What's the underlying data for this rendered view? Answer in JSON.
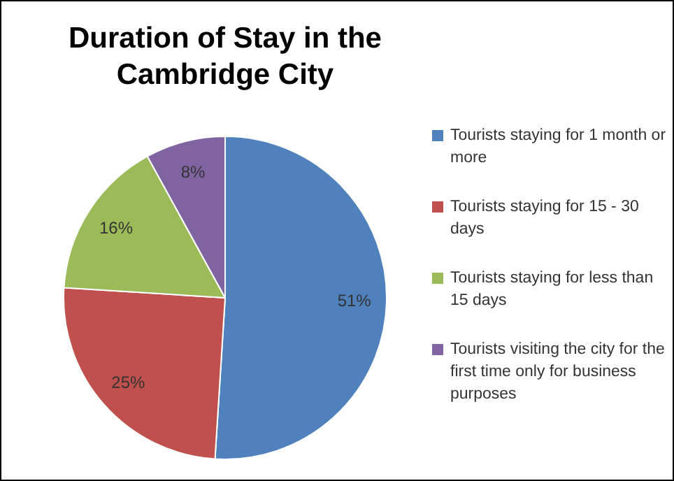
{
  "chart_data": {
    "type": "pie",
    "title": "Duration of Stay in the Cambridge City",
    "categories": [
      "Tourists staying for 1 month or more",
      "Tourists staying for 15 - 30 days",
      "Tourists staying for less than 15 days",
      "Tourists visiting the city for the first time only for business purposes"
    ],
    "values": [
      51,
      25,
      16,
      8
    ],
    "colors": [
      "#4f81bd",
      "#c0504d",
      "#9bbb59",
      "#8064a2"
    ],
    "value_labels": [
      "51%",
      "25%",
      "16%",
      "8%"
    ],
    "legend": "right"
  }
}
